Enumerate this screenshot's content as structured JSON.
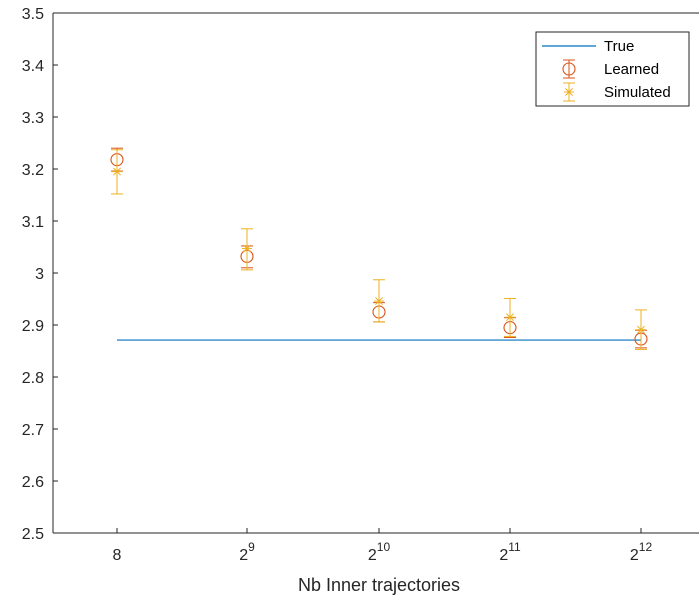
{
  "chart_data": {
    "type": "scatter",
    "title": "",
    "xlabel": "Nb Inner trajectories",
    "ylabel": "",
    "categories": [
      "8",
      "2^9",
      "2^10",
      "2^11",
      "2^12"
    ],
    "x_tick_labels": [
      {
        "base": "8",
        "exp": ""
      },
      {
        "base": "2",
        "exp": "9"
      },
      {
        "base": "2",
        "exp": "10"
      },
      {
        "base": "2",
        "exp": "11"
      },
      {
        "base": "2",
        "exp": "12"
      }
    ],
    "ylim": [
      2.5,
      3.5
    ],
    "y_ticks": [
      "2.5",
      "2.6",
      "2.7",
      "2.8",
      "2.9",
      "3",
      "3.1",
      "3.2",
      "3.3",
      "3.4",
      "3.5"
    ],
    "grid": false,
    "legend_position": "top-right",
    "series": [
      {
        "name": "True",
        "marker": "line",
        "color": "#0072BD",
        "values": [
          2.871,
          2.871,
          2.871,
          2.871,
          2.871
        ]
      },
      {
        "name": "Learned",
        "marker": "circle",
        "color": "#D95319",
        "values": [
          3.218,
          3.032,
          2.925,
          2.895,
          2.873
        ],
        "err_low": [
          3.196,
          3.01,
          2.906,
          2.876,
          2.856
        ],
        "err_high": [
          3.24,
          3.052,
          2.943,
          2.914,
          2.89
        ]
      },
      {
        "name": "Simulated",
        "marker": "star",
        "color": "#EDB120",
        "values": [
          3.195,
          3.047,
          2.946,
          2.915,
          2.891
        ],
        "err_low": [
          3.152,
          3.006,
          2.906,
          2.878,
          2.853
        ],
        "err_high": [
          3.237,
          3.085,
          2.987,
          2.951,
          2.929
        ]
      }
    ]
  }
}
